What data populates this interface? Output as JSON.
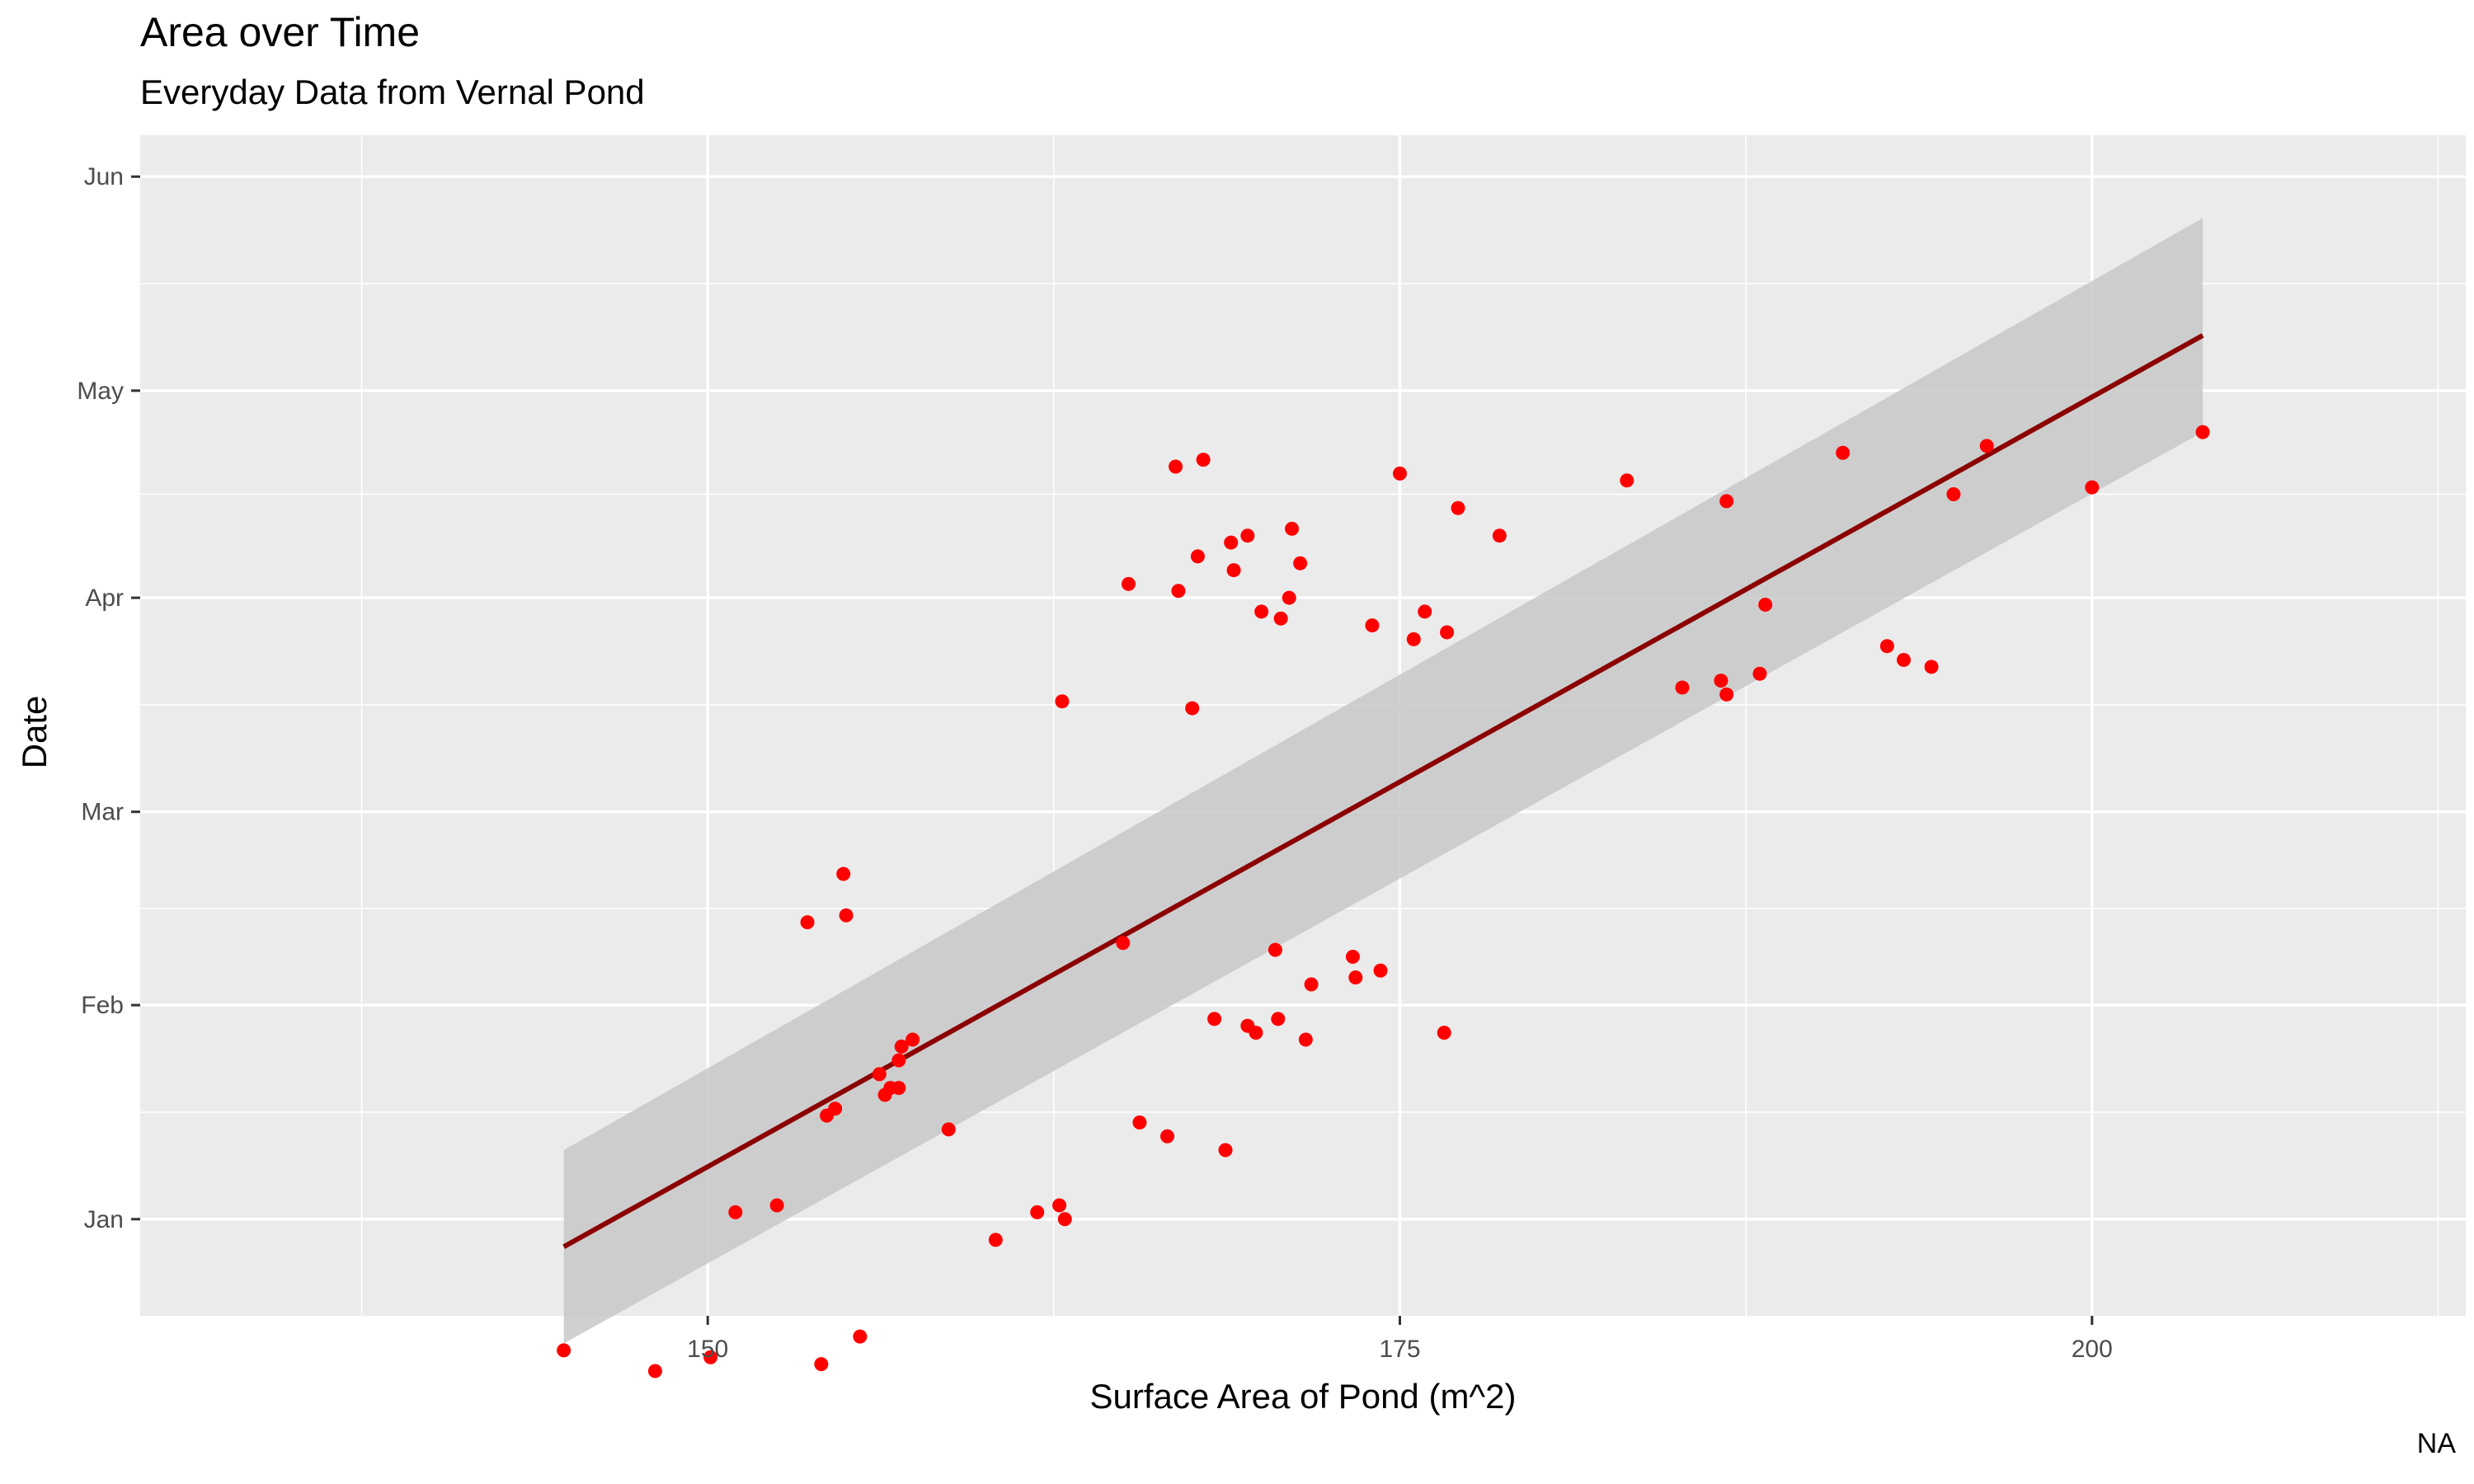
{
  "chart_data": {
    "type": "scatter",
    "title": "Area over Time",
    "subtitle": "Everyday Data from Vernal Pond",
    "caption": "NA",
    "xlabel": "Surface Area of Pond (m^2)",
    "ylabel": "Date",
    "xlim": [
      129.5,
      213.5
    ],
    "ylim": [
      "2020-12-18",
      "2021-06-07"
    ],
    "x_ticks": [
      150,
      175,
      200
    ],
    "y_ticks": [
      {
        "label": "Jan",
        "date": "2021-01-01"
      },
      {
        "label": "Feb",
        "date": "2021-02-01"
      },
      {
        "label": "Mar",
        "date": "2021-03-01"
      },
      {
        "label": "Apr",
        "date": "2021-04-01"
      },
      {
        "label": "May",
        "date": "2021-05-01"
      },
      {
        "label": "Jun",
        "date": "2021-06-01"
      }
    ],
    "grid": true,
    "point_color": "#ff0000",
    "trend_color": "#8b0000",
    "band_color": "#c8c8c8",
    "panel_color": "#ebebeb",
    "series": [
      {
        "type": "scatter",
        "points": [
          [
            144.8,
            "2020-12-13"
          ],
          [
            148.1,
            "2020-12-10"
          ],
          [
            150.1,
            "2020-12-12"
          ],
          [
            151.0,
            "2021-01-02"
          ],
          [
            152.5,
            "2021-01-03"
          ],
          [
            153.6,
            "2021-02-13"
          ],
          [
            154.1,
            "2020-12-11"
          ],
          [
            154.3,
            "2021-01-16"
          ],
          [
            154.6,
            "2021-01-17"
          ],
          [
            154.9,
            "2021-02-20"
          ],
          [
            155.0,
            "2021-02-14"
          ],
          [
            155.5,
            "2020-12-15"
          ],
          [
            156.2,
            "2021-01-22"
          ],
          [
            156.4,
            "2021-01-19"
          ],
          [
            156.6,
            "2021-01-20"
          ],
          [
            156.9,
            "2021-01-20"
          ],
          [
            156.9,
            "2021-01-24"
          ],
          [
            157.0,
            "2021-01-26"
          ],
          [
            157.4,
            "2021-01-27"
          ],
          [
            158.7,
            "2021-01-14"
          ],
          [
            160.4,
            "2020-12-29"
          ],
          [
            161.9,
            "2021-01-02"
          ],
          [
            162.7,
            "2021-01-03"
          ],
          [
            162.8,
            "2021-03-17"
          ],
          [
            162.9,
            "2021-01-01"
          ],
          [
            165.0,
            "2021-02-10"
          ],
          [
            165.2,
            "2021-04-03"
          ],
          [
            165.6,
            "2021-01-15"
          ],
          [
            166.6,
            "2021-01-13"
          ],
          [
            166.9,
            "2021-04-20"
          ],
          [
            167.0,
            "2021-04-02"
          ],
          [
            167.5,
            "2021-03-16"
          ],
          [
            167.7,
            "2021-04-07"
          ],
          [
            167.9,
            "2021-04-21"
          ],
          [
            168.3,
            "2021-01-30"
          ],
          [
            168.7,
            "2021-01-11"
          ],
          [
            168.9,
            "2021-04-09"
          ],
          [
            169.0,
            "2021-04-05"
          ],
          [
            169.5,
            "2021-04-10"
          ],
          [
            169.5,
            "2021-01-29"
          ],
          [
            169.8,
            "2021-01-28"
          ],
          [
            170.0,
            "2021-03-30"
          ],
          [
            170.5,
            "2021-02-09"
          ],
          [
            170.6,
            "2021-01-30"
          ],
          [
            170.7,
            "2021-03-29"
          ],
          [
            171.0,
            "2021-04-01"
          ],
          [
            171.1,
            "2021-04-11"
          ],
          [
            171.4,
            "2021-04-06"
          ],
          [
            171.6,
            "2021-01-27"
          ],
          [
            171.8,
            "2021-02-04"
          ],
          [
            173.3,
            "2021-02-08"
          ],
          [
            173.4,
            "2021-02-05"
          ],
          [
            174.0,
            "2021-03-28"
          ],
          [
            174.3,
            "2021-02-06"
          ],
          [
            175.0,
            "2021-04-19"
          ],
          [
            175.5,
            "2021-03-26"
          ],
          [
            175.9,
            "2021-03-30"
          ],
          [
            176.6,
            "2021-01-28"
          ],
          [
            176.7,
            "2021-03-27"
          ],
          [
            177.1,
            "2021-04-14"
          ],
          [
            178.6,
            "2021-04-10"
          ],
          [
            183.2,
            "2021-04-18"
          ],
          [
            185.2,
            "2021-03-19"
          ],
          [
            186.6,
            "2021-03-20"
          ],
          [
            186.8,
            "2021-04-15"
          ],
          [
            186.8,
            "2021-03-18"
          ],
          [
            188.0,
            "2021-03-21"
          ],
          [
            188.2,
            "2021-03-31"
          ],
          [
            191.0,
            "2021-04-22"
          ],
          [
            192.6,
            "2021-03-25"
          ],
          [
            193.2,
            "2021-03-23"
          ],
          [
            194.2,
            "2021-03-22"
          ],
          [
            195.0,
            "2021-04-16"
          ],
          [
            196.2,
            "2021-04-23"
          ],
          [
            200.0,
            "2021-04-17"
          ],
          [
            204.0,
            "2021-04-25"
          ]
        ]
      },
      {
        "type": "line",
        "x": [
          144.8,
          204.0
        ],
        "y": [
          "2020-12-28",
          "2021-05-09"
        ],
        "band_lower": [
          "2020-12-14",
          "2021-04-25"
        ],
        "band_upper": [
          "2021-01-11",
          "2021-05-26"
        ]
      }
    ]
  }
}
